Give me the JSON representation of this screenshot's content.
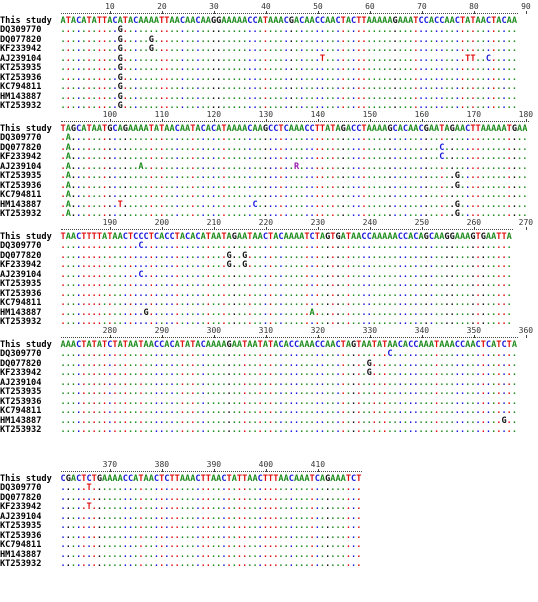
{
  "alignment": {
    "labels": [
      "This study",
      "DQ309770",
      "DQ077820",
      "KF233942",
      "AJ239104",
      "KT253935",
      "KT253936",
      "KC794811",
      "HM143887",
      "KT253932"
    ],
    "blocks": [
      {
        "start": 1,
        "ticks": [
          10,
          20,
          30,
          40,
          50,
          60,
          70,
          80,
          90
        ],
        "reference": "ATACATATTACATACAAAATTAACAACAAGGAAAAACCATAAACGACAACCAACTACTTAAAAAGAAATCCACCAACTATAACTACAA",
        "rows": [
          {
            "diffs": {
              "12": "G"
            }
          },
          {
            "diffs": {
              "12": "G",
              "18": "G"
            }
          },
          {
            "diffs": {
              "12": "G",
              "18": "G"
            }
          },
          {
            "diffs": {
              "12": "G",
              "51": "T",
              "79": "T",
              "80": "T",
              "83": "C"
            }
          },
          {
            "diffs": {
              "12": "G"
            }
          },
          {
            "diffs": {
              "12": "G"
            }
          },
          {
            "diffs": {
              "12": "G"
            }
          },
          {
            "diffs": {
              "12": "G"
            }
          },
          {
            "diffs": {
              "12": "G"
            }
          }
        ]
      },
      {
        "start": 91,
        "ticks": [
          100,
          110,
          120,
          130,
          140,
          150,
          160,
          170,
          180
        ],
        "reference": "TAGCATAATGCAGAAAATATAACAATACACATAAAACAAGCCTCAAACCTTATAGACCTAAAAGCACAACGAATAGAACTTAAAAATGAA",
        "rows": [
          {
            "diffs": {
              "92": "A"
            }
          },
          {
            "diffs": {
              "92": "A",
              "164": "C"
            }
          },
          {
            "diffs": {
              "92": "A",
              "164": "C"
            }
          },
          {
            "diffs": {
              "92": "A",
              "106": "A",
              "136": "R"
            }
          },
          {
            "diffs": {
              "92": "A",
              "167": "G"
            }
          },
          {
            "diffs": {
              "92": "A",
              "167": "G"
            }
          },
          {
            "diffs": {
              "92": "A"
            }
          },
          {
            "diffs": {
              "92": "A",
              "102": "T",
              "128": "C",
              "167": "G"
            }
          },
          {
            "diffs": {
              "92": "A",
              "167": "G"
            }
          }
        ]
      },
      {
        "start": 181,
        "ticks": [
          190,
          200,
          210,
          220,
          230,
          240,
          250,
          260,
          270
        ],
        "reference": "TAACTTTTATAACTCCCTCACCTACACATAATAGAATAACTACAAAATCTAGTGATAACCAAAAACCACAGCAAGGAAAGTGAATTA",
        "rows": [
          {
            "diffs": {
              "196": "C"
            }
          },
          {
            "diffs": {
              "213": "G",
              "216": "G"
            }
          },
          {
            "diffs": {
              "213": "G",
              "216": "G"
            }
          },
          {
            "diffs": {
              "196": "C"
            }
          },
          {
            "diffs": {}
          },
          {
            "diffs": {}
          },
          {
            "diffs": {}
          },
          {
            "diffs": {
              "197": "G",
              "229": "A"
            }
          },
          {
            "diffs": {}
          }
        ]
      },
      {
        "start": 271,
        "ticks": [
          280,
          290,
          300,
          310,
          320,
          330,
          340,
          350,
          360
        ],
        "reference": "AAACTATATCTATAATAACCACATATACAAAAGAATAATATACACCAAACCAACTAGTAATATAACACCAAATAAACCAACTCATCTA",
        "rows": [
          {
            "diffs": {
              "334": "C"
            }
          },
          {
            "diffs": {
              "330": "G"
            }
          },
          {
            "diffs": {
              "330": "G"
            }
          },
          {
            "diffs": {}
          },
          {
            "diffs": {}
          },
          {
            "diffs": {}
          },
          {
            "diffs": {}
          },
          {
            "diffs": {
              "356": "G"
            }
          },
          {
            "diffs": {}
          }
        ]
      },
      {
        "start": 361,
        "ticks": [
          370,
          380,
          390,
          400,
          410
        ],
        "reference": "CGACTCTGAAAACCATAACTCTTAAACTTAACTATTAACTTTAACAAATCAGAAATCT",
        "rows": [
          {
            "diffs": {
              "366": "T"
            }
          },
          {
            "diffs": {}
          },
          {
            "diffs": {
              "366": "T"
            }
          },
          {
            "diffs": {}
          },
          {
            "diffs": {}
          },
          {
            "diffs": {}
          },
          {
            "diffs": {}
          },
          {
            "diffs": {}
          },
          {
            "diffs": {}
          }
        ]
      }
    ]
  }
}
